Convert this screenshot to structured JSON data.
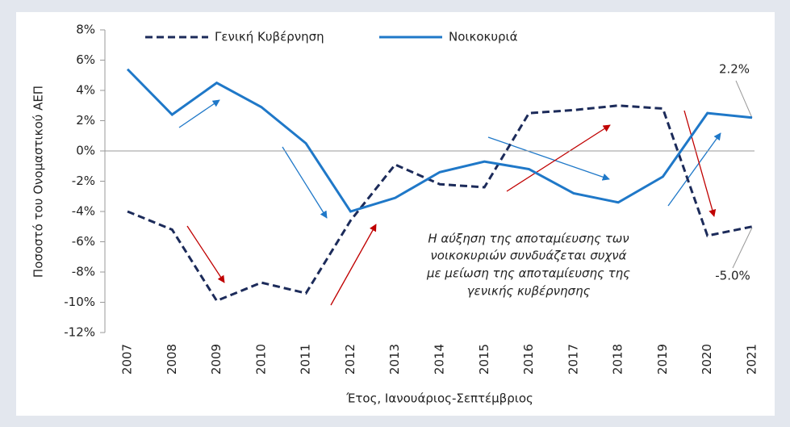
{
  "chart_data": {
    "type": "line",
    "xlabel": "Έτος, Ιανουάριος-Σεπτέμβριος",
    "ylabel": "Ποσοστό του Ονομαστικού ΑΕΠ",
    "categories": [
      "2007",
      "2008",
      "2009",
      "2010",
      "2011",
      "2012",
      "2013",
      "2014",
      "2015",
      "2016",
      "2017",
      "2018",
      "2019",
      "2020",
      "2021"
    ],
    "series": [
      {
        "name": "Γενική Κυβέρνηση",
        "color": "#1c2b5a",
        "dash": true,
        "values": [
          -4.0,
          -5.2,
          -9.9,
          -8.7,
          -9.4,
          -4.6,
          -0.9,
          -2.2,
          -2.4,
          2.5,
          2.7,
          3.0,
          2.8,
          -5.6,
          -5.0
        ]
      },
      {
        "name": "Νοικοκυριά",
        "color": "#1f78c8",
        "dash": false,
        "values": [
          5.4,
          2.4,
          4.5,
          2.9,
          0.5,
          -4.0,
          -3.1,
          -1.4,
          -0.7,
          -1.2,
          -2.8,
          -3.4,
          -1.7,
          2.5,
          2.2
        ]
      }
    ],
    "ylim": [
      -12,
      8
    ],
    "yticks": [
      {
        "value": -12,
        "label": "-12%"
      },
      {
        "value": -10,
        "label": "-10%"
      },
      {
        "value": -8,
        "label": "-8%"
      },
      {
        "value": -6,
        "label": "-6%"
      },
      {
        "value": -4,
        "label": "-4%"
      },
      {
        "value": -2,
        "label": "-2%"
      },
      {
        "value": 0,
        "label": "0%"
      },
      {
        "value": 2,
        "label": "2%"
      },
      {
        "value": 4,
        "label": "4%"
      },
      {
        "value": 6,
        "label": "6%"
      },
      {
        "value": 8,
        "label": "8%"
      }
    ],
    "annotations": [
      "2.2%",
      "-5.0%",
      "Η αύξηση της αποταμίευσης των",
      "νοικοκυριών συνδυάζεται συχνά",
      "με μείωση της αποταμίευσης της",
      "γενικής κυβέρνησης"
    ]
  }
}
